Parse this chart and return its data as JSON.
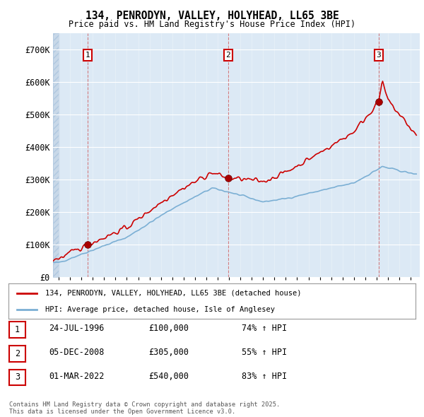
{
  "title": "134, PENRODYN, VALLEY, HOLYHEAD, LL65 3BE",
  "subtitle": "Price paid vs. HM Land Registry's House Price Index (HPI)",
  "legend_line1": "134, PENRODYN, VALLEY, HOLYHEAD, LL65 3BE (detached house)",
  "legend_line2": "HPI: Average price, detached house, Isle of Anglesey",
  "sale_color": "#cc0000",
  "hpi_color": "#7bafd4",
  "background_color": "#ffffff",
  "chart_bg_color": "#dce9f5",
  "grid_color": "#ffffff",
  "hatch_color": "#c8d8e8",
  "ylim": [
    0,
    750000
  ],
  "yticks": [
    0,
    100000,
    200000,
    300000,
    400000,
    500000,
    600000,
    700000
  ],
  "ytick_labels": [
    "£0",
    "£100K",
    "£200K",
    "£300K",
    "£400K",
    "£500K",
    "£600K",
    "£700K"
  ],
  "sale_events": [
    {
      "date": 1996.56,
      "price": 100000,
      "label": "1"
    },
    {
      "date": 2008.92,
      "price": 305000,
      "label": "2"
    },
    {
      "date": 2022.17,
      "price": 540000,
      "label": "3"
    }
  ],
  "transaction_table": [
    {
      "num": "1",
      "date": "24-JUL-1996",
      "price": "£100,000",
      "hpi": "74% ↑ HPI"
    },
    {
      "num": "2",
      "date": "05-DEC-2008",
      "price": "£305,000",
      "hpi": "55% ↑ HPI"
    },
    {
      "num": "3",
      "date": "01-MAR-2022",
      "price": "£540,000",
      "hpi": "83% ↑ HPI"
    }
  ],
  "footnote": "Contains HM Land Registry data © Crown copyright and database right 2025.\nThis data is licensed under the Open Government Licence v3.0.",
  "xlim_start": 1993.5,
  "xlim_end": 2025.8
}
